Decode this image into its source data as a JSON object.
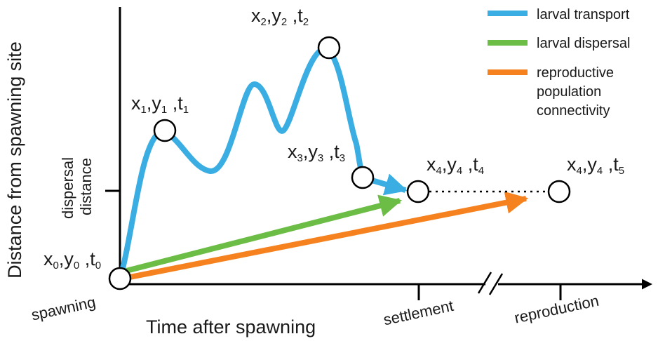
{
  "axes": {
    "y_title": "Distance from spawning site",
    "x_title": "Time after spawning",
    "y_tick_label_line1": "dispersal",
    "y_tick_label_line2": "distance",
    "x_origin_label": "spawning",
    "x_settlement_label": "settlement",
    "x_reproduction_label": "reproduction"
  },
  "legend": {
    "transport": {
      "label": "larval transport",
      "color": "#3aaee3"
    },
    "dispersal": {
      "label": "larval dispersal",
      "color": "#6cbd45"
    },
    "connectivity": {
      "label_line1": "reproductive",
      "label_line2": "population",
      "label_line3": "connectivity",
      "color": "#f5821f"
    }
  },
  "points": [
    {
      "id": "p0",
      "x": "x",
      "xs": "0",
      "y": "y",
      "ys": "0",
      "t": "t",
      "ts": "0"
    },
    {
      "id": "p1",
      "x": "x",
      "xs": "1",
      "y": "y",
      "ys": "1",
      "t": "t",
      "ts": "1"
    },
    {
      "id": "p2",
      "x": "x",
      "xs": "2",
      "y": "y",
      "ys": "2",
      "t": "t",
      "ts": "2"
    },
    {
      "id": "p3",
      "x": "x",
      "xs": "3",
      "y": "y",
      "ys": "3",
      "t": "t",
      "ts": "3"
    },
    {
      "id": "p4",
      "x": "x",
      "xs": "4",
      "y": "y",
      "ys": "4",
      "t": "t",
      "ts": "4"
    },
    {
      "id": "p5",
      "x": "x",
      "xs": "4",
      "y": "y",
      "ys": "4",
      "t": "t",
      "ts": "5"
    }
  ]
}
